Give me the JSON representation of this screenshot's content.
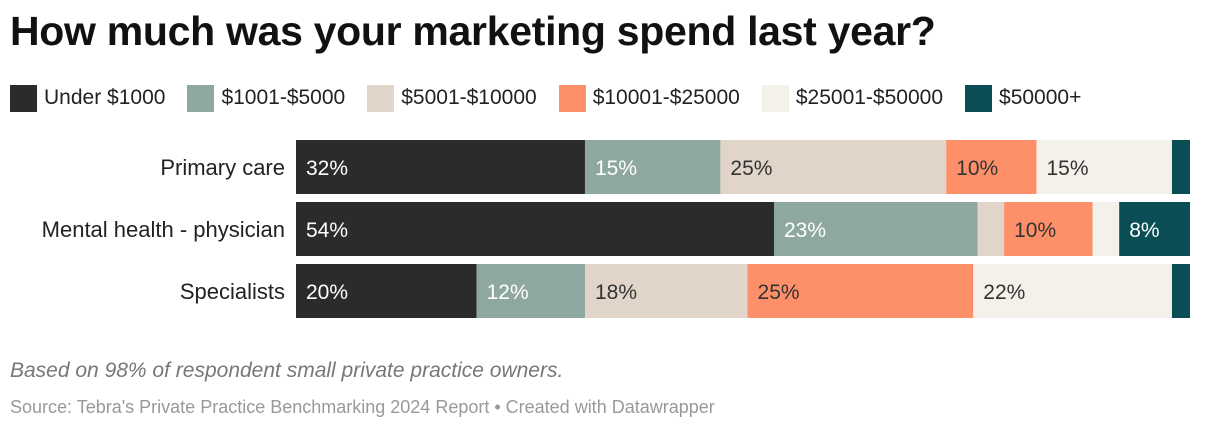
{
  "title": "How much was your marketing spend last year?",
  "note": "Based on 98% of respondent small private practice owners.",
  "source": "Source: Tebra's Private Practice Benchmarking 2024 Report • Created with Datawrapper",
  "chart_data": {
    "type": "bar",
    "orientation": "horizontal",
    "stacked": true,
    "normalized": true,
    "title": "How much was your marketing spend last year?",
    "legend_position": "top",
    "categories": [
      "Primary care",
      "Mental health - physician",
      "Specialists"
    ],
    "series": [
      {
        "name": "Under $1000",
        "color": "#2b2b2b",
        "label_color": "#ffffff",
        "values": [
          32,
          54,
          20
        ],
        "labels": [
          "32%",
          "54%",
          "20%"
        ]
      },
      {
        "name": "$1001-$5000",
        "color": "#8ea8a1",
        "label_color": "#ffffff",
        "values": [
          15,
          23,
          12
        ],
        "labels": [
          "15%",
          "23%",
          "12%"
        ]
      },
      {
        "name": "$5001-$10000",
        "color": "#e1d4c8",
        "label_color": "#333333",
        "values": [
          25,
          3,
          18
        ],
        "labels": [
          "25%",
          "",
          "18%"
        ]
      },
      {
        "name": "$10001-$25000",
        "color": "#fe9069",
        "label_color": "#333333",
        "values": [
          10,
          10,
          25
        ],
        "labels": [
          "10%",
          "10%",
          "25%"
        ]
      },
      {
        "name": "$25001-$50000",
        "color": "#f4f1ea",
        "label_color": "#333333",
        "values": [
          15,
          3,
          22
        ],
        "labels": [
          "15%",
          "",
          "22%"
        ]
      },
      {
        "name": "$50000+",
        "color": "#0b4d55",
        "label_color": "#ffffff",
        "values": [
          2,
          8,
          2
        ],
        "labels": [
          "",
          "8%",
          ""
        ]
      }
    ]
  }
}
